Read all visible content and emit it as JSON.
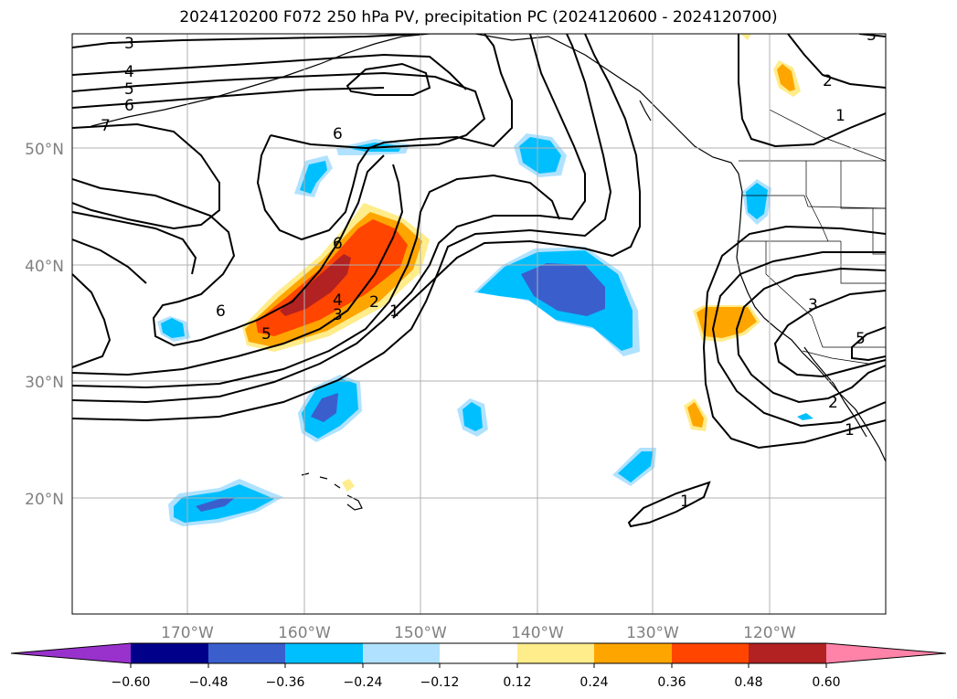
{
  "title": "2024120200 F072 250 hPa PV, precipitation PC (2024120600 - 2024120700)",
  "colors": {
    "c_neg_060": "#9932cc",
    "c_neg_048": "#00008b",
    "c_neg_036": "#3a5fcd",
    "c_neg_024": "#00bfff",
    "c_neg_012": "#b0e2ff",
    "c_zero": "#ffffff",
    "c_pos_012": "#ffec8b",
    "c_pos_024": "#ffa500",
    "c_pos_036": "#ff4500",
    "c_pos_048": "#b22222",
    "c_pos_060": "#ff83a8",
    "grid": "#b0b0b0",
    "lat_lon_label": "#808080"
  },
  "map": {
    "lat_labels": [
      "50°N",
      "40°N",
      "30°N",
      "20°N"
    ],
    "lon_labels": [
      "170°W",
      "160°W",
      "150°W",
      "140°W",
      "130°W",
      "120°W"
    ]
  },
  "contour_labels": [
    {
      "text": "3"
    },
    {
      "text": "4"
    },
    {
      "text": "5"
    },
    {
      "text": "6"
    },
    {
      "text": "7"
    },
    {
      "text": "6"
    },
    {
      "text": "6"
    },
    {
      "text": "6"
    },
    {
      "text": "5"
    },
    {
      "text": "4"
    },
    {
      "text": "3"
    },
    {
      "text": "2"
    },
    {
      "text": "1"
    },
    {
      "text": "2"
    },
    {
      "text": "1"
    },
    {
      "text": "3"
    },
    {
      "text": "3"
    },
    {
      "text": "2"
    },
    {
      "text": "1"
    },
    {
      "text": "5"
    },
    {
      "text": "1"
    }
  ],
  "colorbar": {
    "tick_labels": [
      "−0.60",
      "−0.48",
      "−0.36",
      "−0.24",
      "−0.12",
      "0.12",
      "0.24",
      "0.36",
      "0.48",
      "0.60"
    ]
  }
}
